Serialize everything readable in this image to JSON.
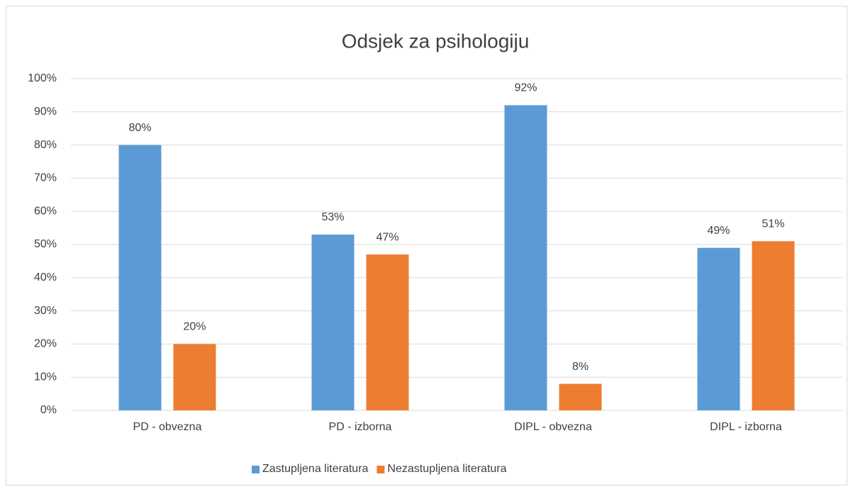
{
  "chart_data": {
    "type": "bar",
    "title": "Odsjek za psihologiju",
    "categories": [
      "PD - obvezna",
      "PD - izborna",
      "DIPL - obvezna",
      "DIPL - izborna"
    ],
    "series": [
      {
        "name": "Zastupljena literatura",
        "color": "#5b9bd5",
        "values": [
          80,
          53,
          92,
          49
        ],
        "value_labels": [
          "80%",
          "53%",
          "92%",
          "49%"
        ]
      },
      {
        "name": "Nezastupljena literatura",
        "color": "#ed7d31",
        "values": [
          20,
          47,
          8,
          51
        ],
        "value_labels": [
          "20%",
          "47%",
          "8%",
          "51%"
        ]
      }
    ],
    "ylim": [
      0,
      100
    ],
    "yticks": [
      {
        "value": 0,
        "label": "0%"
      },
      {
        "value": 10,
        "label": "10%"
      },
      {
        "value": 20,
        "label": "20%"
      },
      {
        "value": 30,
        "label": "30%"
      },
      {
        "value": 40,
        "label": "40%"
      },
      {
        "value": 50,
        "label": "50%"
      },
      {
        "value": 60,
        "label": "60%"
      },
      {
        "value": 70,
        "label": "70%"
      },
      {
        "value": 80,
        "label": "80%"
      },
      {
        "value": 90,
        "label": "90%"
      },
      {
        "value": 100,
        "label": "100%"
      }
    ],
    "grid": true,
    "legend": "bottom"
  }
}
